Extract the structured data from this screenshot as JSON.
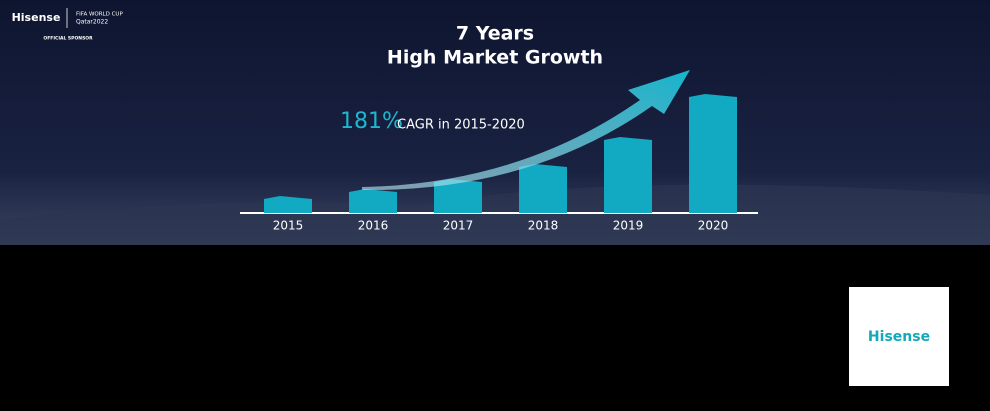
{
  "header": {
    "brand": "Hisense",
    "event_lines": [
      "FIFA WORLD CUP",
      "Qatar2022"
    ],
    "sponsor": "OFFICIAL SPONSOR"
  },
  "chart_data": {
    "type": "bar",
    "title": "7 Years",
    "subtitle": "High Market Growth",
    "annotations": [
      "181%",
      "CAGR in 2015-2020"
    ],
    "categories": [
      "2015",
      "2016",
      "2017",
      "2018",
      "2019",
      "2020"
    ],
    "values": [
      17,
      24,
      34,
      49,
      76,
      119
    ],
    "color": "#12a9c2",
    "ylim": [
      0,
      120
    ]
  },
  "logo_box": {
    "brand": "Hisense"
  }
}
